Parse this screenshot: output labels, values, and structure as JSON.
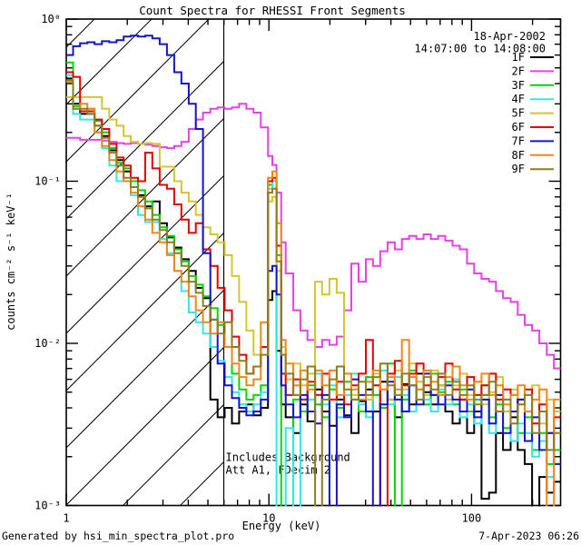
{
  "footer": {
    "left": "Generated by hsi_min_spectra_plot.pro",
    "right": "7-Apr-2023 06:26"
  },
  "chart_data": {
    "type": "line",
    "style": "step-histogram",
    "title": "Count Spectra for RHESSI Front Segments",
    "subtitle_lines": [
      "18-Apr-2002",
      "14:07:00 to 14:08:00"
    ],
    "xlabel": "Energy (keV)",
    "ylabel": "counts cm⁻² s⁻¹ keV⁻¹",
    "x_scale": "log",
    "y_scale": "log",
    "x_range": [
      1,
      275
    ],
    "y_range": [
      0.001,
      1
    ],
    "grid": "off",
    "legend_position": "top-right-inside",
    "hatch_region": {
      "x_min": 1,
      "x_max": 6
    },
    "annotations": [
      "Includes Background",
      "Att A1, FDecim 2"
    ],
    "x_ticks": [
      {
        "value": 1,
        "label": "1"
      },
      {
        "value": 10,
        "label": "10"
      },
      {
        "value": 100,
        "label": "100"
      }
    ],
    "y_ticks": [
      {
        "value": 1,
        "label": "10⁰"
      },
      {
        "value": 0.1,
        "label": "10⁻¹"
      },
      {
        "value": 0.01,
        "label": "10⁻²"
      },
      {
        "value": 0.001,
        "label": "10⁻³"
      }
    ],
    "energies_keV": [
      1.0,
      1.08,
      1.17,
      1.27,
      1.38,
      1.5,
      1.63,
      1.77,
      1.92,
      2.08,
      2.26,
      2.45,
      2.66,
      2.89,
      3.14,
      3.41,
      3.7,
      4.02,
      4.36,
      4.73,
      5.14,
      5.58,
      6.05,
      6.57,
      7.13,
      7.74,
      8.4,
      9.12,
      9.9,
      10.4,
      10.9,
      11.5,
      12.1,
      13.2,
      14.3,
      15.5,
      16.9,
      18.3,
      19.9,
      21.6,
      23.5,
      25.5,
      27.7,
      30.1,
      32.6,
      35.4,
      38.5,
      41.8,
      45.3,
      49.2,
      53.4,
      58.0,
      63.0,
      68.4,
      74.2,
      80.6,
      87.5,
      95.0,
      103,
      112,
      122,
      132,
      143,
      156,
      169,
      183,
      199,
      216,
      235,
      255
    ],
    "series": [
      {
        "name": "1F",
        "color": "#000000",
        "values": [
          0.43,
          0.3,
          0.26,
          0.26,
          0.22,
          0.19,
          0.155,
          0.135,
          0.115,
          0.1,
          0.082,
          0.07,
          0.075,
          0.055,
          0.045,
          0.039,
          0.033,
          0.028,
          0.022,
          0.019,
          0.0045,
          0.0035,
          0.004,
          0.0032,
          0.0038,
          0.0042,
          0.0036,
          0.004,
          0.0185,
          0.021,
          0.009,
          0.0042,
          0.0035,
          0.0028,
          0.0042,
          0.0033,
          0.0052,
          0.0038,
          0.0031,
          0.0045,
          0.0036,
          0.0028,
          0.0044,
          0.0052,
          0.0038,
          0.0058,
          0.0045,
          0.0035,
          0.0056,
          0.0042,
          0.0065,
          0.005,
          0.0042,
          0.0055,
          0.0038,
          0.0032,
          0.0045,
          0.0028,
          0.0038,
          0.0011,
          0.0012,
          0.0028,
          0.0022,
          0.0035,
          0.0022,
          0.0018,
          0.0009,
          0.0015,
          0.0012,
          0.0014
        ]
      },
      {
        "name": "2F",
        "color": "#E640E6",
        "values": [
          0.185,
          0.185,
          0.18,
          0.18,
          0.18,
          0.178,
          0.175,
          0.172,
          0.17,
          0.172,
          0.17,
          0.168,
          0.165,
          0.162,
          0.16,
          0.165,
          0.175,
          0.21,
          0.24,
          0.265,
          0.28,
          0.285,
          0.28,
          0.285,
          0.3,
          0.28,
          0.265,
          0.215,
          0.143,
          0.126,
          0.085,
          0.042,
          0.027,
          0.016,
          0.012,
          0.0105,
          0.0095,
          0.0105,
          0.0098,
          0.011,
          0.016,
          0.031,
          0.024,
          0.033,
          0.03,
          0.037,
          0.042,
          0.038,
          0.044,
          0.046,
          0.044,
          0.047,
          0.044,
          0.046,
          0.043,
          0.04,
          0.038,
          0.031,
          0.027,
          0.025,
          0.024,
          0.021,
          0.019,
          0.018,
          0.015,
          0.013,
          0.012,
          0.01,
          0.0085,
          0.007
        ]
      },
      {
        "name": "3F",
        "color": "#00D800",
        "values": [
          0.54,
          0.29,
          0.27,
          0.28,
          0.235,
          0.2,
          0.16,
          0.13,
          0.12,
          0.1,
          0.088,
          0.075,
          0.062,
          0.052,
          0.046,
          0.038,
          0.032,
          0.026,
          0.023,
          0.0195,
          0.0165,
          0.013,
          0.0095,
          0.0065,
          0.0052,
          0.0045,
          0.0048,
          0.0055,
          0.095,
          0.1,
          0.035,
          0.0008,
          0.0008,
          0.0045,
          0.0038,
          0.0055,
          0.0042,
          0.0035,
          0.0052,
          0.004,
          0.0058,
          0.0045,
          0.0038,
          0.0062,
          0.0048,
          0.004,
          0.0075,
          0.0008,
          0.0045,
          0.0068,
          0.0052,
          0.0042,
          0.0065,
          0.005,
          0.0058,
          0.0042,
          0.0052,
          0.0038,
          0.0045,
          0.0055,
          0.0035,
          0.0042,
          0.003,
          0.0048,
          0.0028,
          0.0035,
          0.0022,
          0.0028,
          0.0018,
          0.0022
        ]
      },
      {
        "name": "4F",
        "color": "#30E8E8",
        "values": [
          0.45,
          0.26,
          0.24,
          0.24,
          0.2,
          0.16,
          0.125,
          0.1,
          0.1,
          0.082,
          0.062,
          0.056,
          0.056,
          0.044,
          0.036,
          0.028,
          0.021,
          0.0155,
          0.0135,
          0.0115,
          0.0095,
          0.0078,
          0.0062,
          0.005,
          0.0042,
          0.0038,
          0.0042,
          0.005,
          0.09,
          0.1,
          0.0008,
          0.0008,
          0.003,
          0.0009,
          0.0045,
          0.0045,
          0.0065,
          0.0042,
          0.0055,
          0.0035,
          0.0048,
          0.0065,
          0.0042,
          0.0035,
          0.0055,
          0.0068,
          0.0042,
          0.0062,
          0.0048,
          0.0038,
          0.0058,
          0.0045,
          0.0038,
          0.0052,
          0.0042,
          0.006,
          0.0035,
          0.0042,
          0.0032,
          0.0048,
          0.0028,
          0.0038,
          0.0045,
          0.0025,
          0.0032,
          0.0028,
          0.002,
          0.0025,
          0.0015,
          0.0018
        ]
      },
      {
        "name": "5F",
        "color": "#D5C52E",
        "values": [
          0.33,
          0.33,
          0.33,
          0.33,
          0.33,
          0.28,
          0.24,
          0.22,
          0.19,
          0.175,
          0.17,
          0.172,
          0.17,
          0.123,
          0.123,
          0.1,
          0.085,
          0.075,
          0.062,
          0.052,
          0.047,
          0.042,
          0.035,
          0.026,
          0.018,
          0.012,
          0.0085,
          0.0095,
          0.075,
          0.08,
          0.028,
          0.0095,
          0.006,
          0.0075,
          0.0055,
          0.0065,
          0.024,
          0.02,
          0.025,
          0.0205,
          0.0065,
          0.0048,
          0.0058,
          0.0045,
          0.0065,
          0.0052,
          0.0045,
          0.0068,
          0.0052,
          0.0075,
          0.0058,
          0.0048,
          0.0068,
          0.0055,
          0.0045,
          0.0055,
          0.0065,
          0.0048,
          0.0058,
          0.0042,
          0.005,
          0.0062,
          0.0038,
          0.0052,
          0.0042,
          0.0048,
          0.0055,
          0.0032,
          0.0045,
          0.0038
        ]
      },
      {
        "name": "6F",
        "color": "#E60000",
        "values": [
          0.47,
          0.44,
          0.27,
          0.27,
          0.24,
          0.21,
          0.17,
          0.14,
          0.125,
          0.105,
          0.1,
          0.15,
          0.12,
          0.095,
          0.09,
          0.072,
          0.058,
          0.048,
          0.055,
          0.038,
          0.03,
          0.022,
          0.016,
          0.011,
          0.0085,
          0.0065,
          0.0072,
          0.0095,
          0.1,
          0.105,
          0.04,
          0.0065,
          0.0048,
          0.006,
          0.0045,
          0.0058,
          0.0048,
          0.0065,
          0.0045,
          0.0058,
          0.0042,
          0.0055,
          0.0065,
          0.0105,
          0.0055,
          0.0009,
          0.0065,
          0.0078,
          0.0055,
          0.0065,
          0.0075,
          0.0055,
          0.0048,
          0.0062,
          0.0075,
          0.0052,
          0.0045,
          0.0062,
          0.0048,
          0.0055,
          0.0065,
          0.0045,
          0.0052,
          0.0038,
          0.0045,
          0.0052,
          0.0032,
          0.0042,
          0.0028,
          0.0035
        ]
      },
      {
        "name": "7F",
        "color": "#1414CC",
        "values": [
          0.6,
          0.68,
          0.71,
          0.72,
          0.7,
          0.73,
          0.72,
          0.74,
          0.78,
          0.79,
          0.78,
          0.79,
          0.76,
          0.7,
          0.6,
          0.47,
          0.4,
          0.3,
          0.21,
          0.036,
          0.014,
          0.0075,
          0.0055,
          0.0046,
          0.004,
          0.0036,
          0.0038,
          0.0045,
          0.028,
          0.03,
          0.02,
          0.0055,
          0.0042,
          0.0035,
          0.0048,
          0.0038,
          0.0032,
          0.0048,
          0.0008,
          0.0042,
          0.0035,
          0.006,
          0.0048,
          0.0038,
          0.0009,
          0.0042,
          0.0058,
          0.0045,
          0.0038,
          0.0055,
          0.0042,
          0.0065,
          0.0048,
          0.0042,
          0.0055,
          0.0045,
          0.0038,
          0.0052,
          0.0035,
          0.0045,
          0.0032,
          0.0048,
          0.0028,
          0.0038,
          0.0045,
          0.0025,
          0.0035,
          0.0022,
          0.0028,
          0.0018
        ]
      },
      {
        "name": "8F",
        "color": "#F28718",
        "values": [
          0.41,
          0.28,
          0.3,
          0.28,
          0.2,
          0.165,
          0.135,
          0.115,
          0.1,
          0.085,
          0.07,
          0.058,
          0.048,
          0.042,
          0.035,
          0.028,
          0.024,
          0.0195,
          0.016,
          0.0135,
          0.0115,
          0.0135,
          0.0095,
          0.0075,
          0.0062,
          0.0055,
          0.006,
          0.0135,
          0.105,
          0.115,
          0.055,
          0.0105,
          0.0075,
          0.0055,
          0.0068,
          0.0052,
          0.0068,
          0.0055,
          0.0068,
          0.0048,
          0.0065,
          0.0052,
          0.0045,
          0.0058,
          0.0068,
          0.0052,
          0.0062,
          0.0052,
          0.0105,
          0.0062,
          0.0052,
          0.0068,
          0.0058,
          0.0048,
          0.0062,
          0.0072,
          0.0055,
          0.0045,
          0.0058,
          0.0065,
          0.0048,
          0.0055,
          0.0042,
          0.0048,
          0.0055,
          0.0038,
          0.0045,
          0.0052,
          0.0009,
          0.0045
        ]
      },
      {
        "name": "9F",
        "color": "#8F7D1E",
        "values": [
          0.42,
          0.28,
          0.28,
          0.26,
          0.22,
          0.185,
          0.15,
          0.125,
          0.105,
          0.092,
          0.08,
          0.068,
          0.058,
          0.05,
          0.042,
          0.036,
          0.03,
          0.024,
          0.0205,
          0.017,
          0.014,
          0.0115,
          0.0135,
          0.0095,
          0.0078,
          0.0065,
          0.0072,
          0.0085,
          0.085,
          0.09,
          0.032,
          0.0085,
          0.0065,
          0.0048,
          0.006,
          0.0072,
          0.0009,
          0.0045,
          0.006,
          0.0072,
          0.0052,
          0.0045,
          0.0058,
          0.0048,
          0.0062,
          0.0075,
          0.0055,
          0.0048,
          0.0065,
          0.0055,
          0.0045,
          0.0062,
          0.0052,
          0.0065,
          0.0048,
          0.0058,
          0.0048,
          0.0055,
          0.0042,
          0.0048,
          0.0058,
          0.0038,
          0.0045,
          0.0032,
          0.0042,
          0.0048,
          0.0028,
          0.0038,
          0.0022,
          0.0028
        ]
      }
    ]
  }
}
